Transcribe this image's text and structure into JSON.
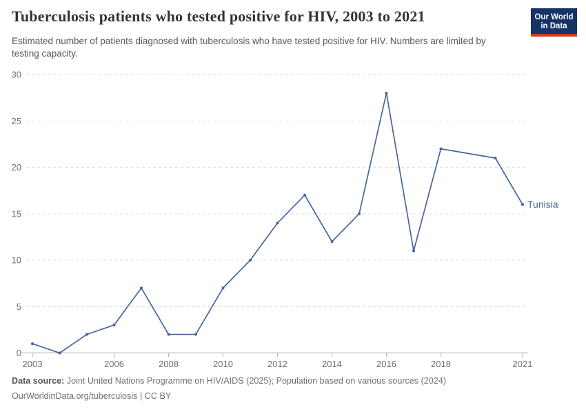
{
  "header": {
    "logo": {
      "line1": "Our World",
      "line2": "in Data",
      "bg_color": "#153365",
      "bar_color": "#D7352B"
    }
  },
  "subtitle": "Estimated number of patients diagnosed with tuberculosis who have tested positive for HIV. Numbers are limited by testing capacity.",
  "chart_data": {
    "type": "line",
    "title": "Tuberculosis patients who tested positive for HIV, 2003 to 2021",
    "xlabel": "",
    "ylabel": "",
    "xlim": [
      2003,
      2021
    ],
    "ylim": [
      0,
      30
    ],
    "xticks": [
      2003,
      2006,
      2008,
      2010,
      2012,
      2014,
      2016,
      2018,
      2021
    ],
    "yticks": [
      0,
      5,
      10,
      15,
      20,
      25,
      30
    ],
    "grid": "horizontal-dashed",
    "legend_position": "end-of-line",
    "missing_years": [
      2019
    ],
    "series": [
      {
        "name": "Tunisia",
        "color": "#46659B",
        "points": [
          [
            2003,
            1
          ],
          [
            2004,
            0
          ],
          [
            2005,
            2
          ],
          [
            2006,
            3
          ],
          [
            2007,
            7
          ],
          [
            2008,
            2
          ],
          [
            2009,
            2
          ],
          [
            2010,
            7
          ],
          [
            2011,
            10
          ],
          [
            2012,
            14
          ],
          [
            2013,
            17
          ],
          [
            2014,
            12
          ],
          [
            2015,
            15
          ],
          [
            2016,
            28
          ],
          [
            2017,
            11
          ],
          [
            2018,
            22
          ],
          [
            2020,
            21
          ],
          [
            2021,
            16
          ]
        ]
      }
    ]
  },
  "footer": {
    "source_label": "Data source:",
    "source_text": "Joint United Nations Programme on HIV/AIDS (2025); Population based on various sources (2024)",
    "url": "OurWorldinData.org/tuberculosis",
    "separator": " | ",
    "license": "CC BY"
  }
}
